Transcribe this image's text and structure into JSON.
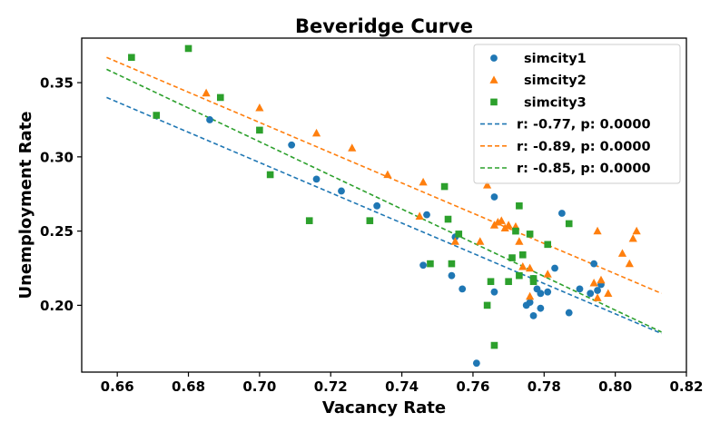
{
  "chart_data": {
    "type": "scatter",
    "title": "Beveridge Curve",
    "xlabel": "Vacancy Rate",
    "ylabel": "Unemployment Rate",
    "xlim": [
      0.65,
      0.82
    ],
    "ylim": [
      0.155,
      0.38
    ],
    "xticks": [
      "0.66",
      "0.68",
      "0.70",
      "0.72",
      "0.74",
      "0.76",
      "0.78",
      "0.80",
      "0.82"
    ],
    "yticks": [
      "0.20",
      "0.25",
      "0.30",
      "0.35"
    ],
    "legend_position": "top-right",
    "series": [
      {
        "name": "simcity1",
        "marker": "circle",
        "color": "#1f77b4",
        "points": [
          [
            0.686,
            0.325
          ],
          [
            0.709,
            0.308
          ],
          [
            0.716,
            0.285
          ],
          [
            0.723,
            0.277
          ],
          [
            0.733,
            0.267
          ],
          [
            0.746,
            0.227
          ],
          [
            0.747,
            0.261
          ],
          [
            0.754,
            0.22
          ],
          [
            0.755,
            0.246
          ],
          [
            0.757,
            0.211
          ],
          [
            0.761,
            0.161
          ],
          [
            0.766,
            0.273
          ],
          [
            0.766,
            0.209
          ],
          [
            0.775,
            0.2
          ],
          [
            0.776,
            0.202
          ],
          [
            0.777,
            0.193
          ],
          [
            0.777,
            0.218
          ],
          [
            0.778,
            0.211
          ],
          [
            0.779,
            0.198
          ],
          [
            0.779,
            0.208
          ],
          [
            0.781,
            0.209
          ],
          [
            0.783,
            0.225
          ],
          [
            0.785,
            0.262
          ],
          [
            0.787,
            0.195
          ],
          [
            0.79,
            0.211
          ],
          [
            0.793,
            0.208
          ],
          [
            0.794,
            0.228
          ],
          [
            0.795,
            0.21
          ],
          [
            0.796,
            0.214
          ]
        ]
      },
      {
        "name": "simcity2",
        "marker": "triangle",
        "color": "#ff7f0e",
        "points": [
          [
            0.685,
            0.343
          ],
          [
            0.7,
            0.333
          ],
          [
            0.716,
            0.316
          ],
          [
            0.726,
            0.306
          ],
          [
            0.736,
            0.288
          ],
          [
            0.745,
            0.26
          ],
          [
            0.746,
            0.283
          ],
          [
            0.755,
            0.243
          ],
          [
            0.762,
            0.243
          ],
          [
            0.764,
            0.281
          ],
          [
            0.766,
            0.254
          ],
          [
            0.767,
            0.256
          ],
          [
            0.768,
            0.257
          ],
          [
            0.769,
            0.252
          ],
          [
            0.77,
            0.254
          ],
          [
            0.772,
            0.253
          ],
          [
            0.773,
            0.243
          ],
          [
            0.774,
            0.226
          ],
          [
            0.776,
            0.225
          ],
          [
            0.776,
            0.206
          ],
          [
            0.781,
            0.221
          ],
          [
            0.794,
            0.215
          ],
          [
            0.795,
            0.205
          ],
          [
            0.795,
            0.25
          ],
          [
            0.796,
            0.217
          ],
          [
            0.798,
            0.208
          ],
          [
            0.802,
            0.235
          ],
          [
            0.804,
            0.228
          ],
          [
            0.805,
            0.245
          ],
          [
            0.806,
            0.25
          ]
        ]
      },
      {
        "name": "simcity3",
        "marker": "square",
        "color": "#2ca02c",
        "points": [
          [
            0.664,
            0.367
          ],
          [
            0.671,
            0.328
          ],
          [
            0.68,
            0.373
          ],
          [
            0.689,
            0.34
          ],
          [
            0.7,
            0.318
          ],
          [
            0.703,
            0.288
          ],
          [
            0.714,
            0.257
          ],
          [
            0.731,
            0.257
          ],
          [
            0.748,
            0.228
          ],
          [
            0.752,
            0.28
          ],
          [
            0.753,
            0.258
          ],
          [
            0.754,
            0.228
          ],
          [
            0.756,
            0.248
          ],
          [
            0.764,
            0.2
          ],
          [
            0.765,
            0.216
          ],
          [
            0.766,
            0.173
          ],
          [
            0.77,
            0.216
          ],
          [
            0.771,
            0.232
          ],
          [
            0.772,
            0.25
          ],
          [
            0.773,
            0.22
          ],
          [
            0.773,
            0.267
          ],
          [
            0.774,
            0.234
          ],
          [
            0.776,
            0.248
          ],
          [
            0.777,
            0.216
          ],
          [
            0.777,
            0.218
          ],
          [
            0.781,
            0.241
          ],
          [
            0.787,
            0.255
          ]
        ]
      }
    ],
    "trendlines": [
      {
        "label": "r: -0.77, p: 0.0000",
        "color": "#1f77b4",
        "x": [
          0.657,
          0.813
        ],
        "y": [
          0.34,
          0.181
        ]
      },
      {
        "label": "r: -0.89, p: 0.0000",
        "color": "#ff7f0e",
        "x": [
          0.657,
          0.813
        ],
        "y": [
          0.367,
          0.208
        ]
      },
      {
        "label": "r: -0.85, p: 0.0000",
        "color": "#2ca02c",
        "x": [
          0.657,
          0.813
        ],
        "y": [
          0.359,
          0.182
        ]
      }
    ]
  }
}
